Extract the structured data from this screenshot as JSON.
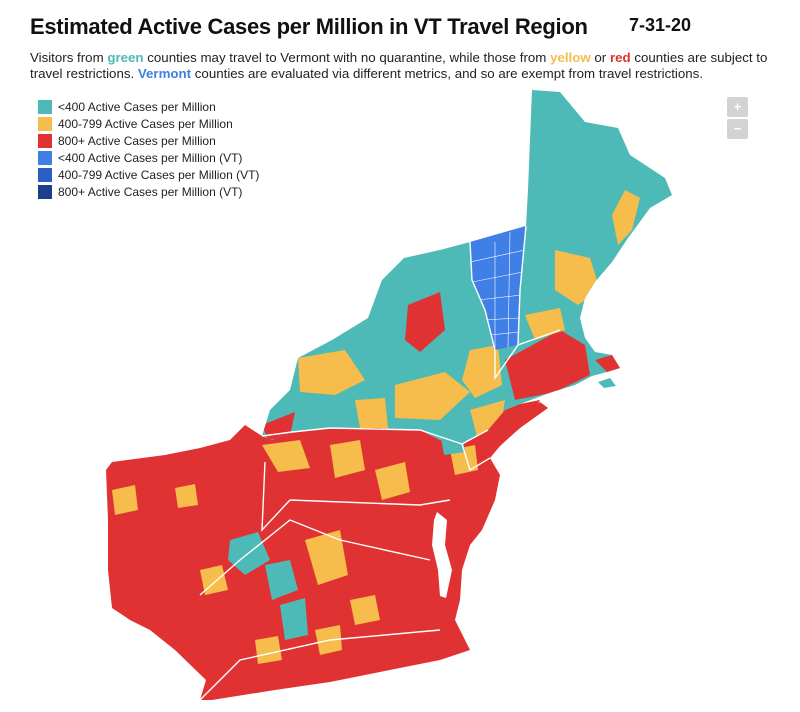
{
  "title": "Estimated Active Cases per Million in VT Travel Region",
  "date": "7-31-20",
  "subtitle": {
    "p1": "Visitors from ",
    "green": "green",
    "p2": " counties may travel to Vermont with no quarantine, while those from ",
    "yellow": "yellow",
    "p3": " or ",
    "red": "red",
    "p4": " counties are subject to travel restrictions. ",
    "vermont": "Vermont",
    "p5": " counties are evaluated via different metrics, and so are exempt from travel restrictions."
  },
  "colors": {
    "green": "#4dbab8",
    "yellow": "#f6bc4c",
    "red": "#e03232",
    "vt_low": "#3f7fe6",
    "vt_mid": "#2b5fc6",
    "vt_high": "#1c3f8c",
    "boundary": "#ffffff"
  },
  "legend": [
    {
      "label": "<400 Active Cases per Million",
      "color": "#4dbab8"
    },
    {
      "label": "400-799 Active Cases per Million",
      "color": "#f6bc4c"
    },
    {
      "label": "800+ Active Cases per Million",
      "color": "#e03232"
    },
    {
      "label": "<400 Active Cases per Million (VT)",
      "color": "#3f7fe6"
    },
    {
      "label": "400-799 Active Cases per Million (VT)",
      "color": "#2b5fc6"
    },
    {
      "label": "800+ Active Cases per Million (VT)",
      "color": "#1c3f8c"
    }
  ],
  "zoom": {
    "in_label": "+",
    "out_label": "−"
  }
}
